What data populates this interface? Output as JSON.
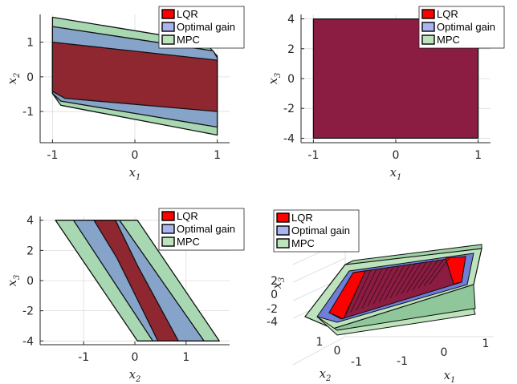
{
  "colors": {
    "lqr": "#ff0000",
    "optimal": "#aab4ee",
    "mpc": "#bde3bd",
    "lqr_fill_2d": "#8e2730",
    "lqr_fill_slab": "#8b1c42",
    "optimal_fill_2d": "#86a3c9",
    "mpc_fill_2d": "#a8d8b2",
    "edge": "#111111"
  },
  "chart_data": [
    {
      "type": "area",
      "panel": "top-left",
      "xlabel": "x1",
      "ylabel": "x2",
      "xlim": [
        -1.15,
        1.15
      ],
      "ylim": [
        -1.9,
        1.8
      ],
      "xticks": [
        "-1",
        "0",
        "1"
      ],
      "yticks": [
        "-1",
        "0",
        "1"
      ],
      "legend": {
        "position": "top-right",
        "entries": [
          "LQR",
          "Optimal gain",
          "MPC"
        ]
      },
      "series": [
        {
          "key": "mpc",
          "polygon": [
            [
              -1,
              1.72
            ],
            [
              0.85,
              1.0
            ],
            [
              1,
              0.6
            ],
            [
              1,
              -1.68
            ],
            [
              -0.9,
              -0.82
            ],
            [
              -1,
              -0.48
            ]
          ]
        },
        {
          "key": "optimal",
          "polygon": [
            [
              -1,
              1.45
            ],
            [
              0.95,
              0.75
            ],
            [
              1,
              0.55
            ],
            [
              1,
              -1.45
            ],
            [
              -0.9,
              -0.7
            ],
            [
              -1,
              -0.48
            ]
          ]
        },
        {
          "key": "lqr",
          "polygon": [
            [
              -1,
              1.0
            ],
            [
              1,
              0.48
            ],
            [
              1,
              -1.0
            ],
            [
              -0.85,
              -0.62
            ],
            [
              -1,
              -0.42
            ]
          ]
        }
      ]
    },
    {
      "type": "area",
      "panel": "top-right",
      "xlabel": "x1",
      "ylabel": "x3",
      "xlim": [
        -1.15,
        1.15
      ],
      "ylim": [
        -4.3,
        4.3
      ],
      "xticks": [
        "-1",
        "0",
        "1"
      ],
      "yticks": [
        "-4",
        "-2",
        "0",
        "2",
        "4"
      ],
      "legend": {
        "position": "top-right",
        "entries": [
          "LQR",
          "Optimal gain",
          "MPC"
        ]
      },
      "series": [
        {
          "key": "lqr",
          "polygon": [
            [
              -1,
              4
            ],
            [
              1,
              4
            ],
            [
              1,
              -4
            ],
            [
              -1,
              -4
            ]
          ]
        }
      ]
    },
    {
      "type": "area",
      "panel": "bottom-left",
      "xlabel": "x2",
      "ylabel": "x3",
      "xlim": [
        -1.85,
        1.85
      ],
      "ylim": [
        -4.25,
        4.25
      ],
      "xticks": [
        "-1",
        "0",
        "1"
      ],
      "yticks": [
        "-4",
        "-2",
        "0",
        "2",
        "4"
      ],
      "legend": {
        "position": "top-right",
        "entries": [
          "LQR",
          "Optimal gain",
          "MPC"
        ]
      },
      "series": [
        {
          "key": "mpc",
          "polygon": [
            [
              -1.55,
              4
            ],
            [
              0.05,
              4
            ],
            [
              1.65,
              -4
            ],
            [
              0.05,
              -4
            ]
          ]
        },
        {
          "key": "optimal",
          "polygon": [
            [
              -1.2,
              4
            ],
            [
              -0.3,
              4
            ],
            [
              1.35,
              -4
            ],
            [
              0.35,
              -4
            ]
          ]
        },
        {
          "key": "lqr",
          "polygon": [
            [
              -0.8,
              4
            ],
            [
              -0.38,
              4
            ],
            [
              0.05,
              1
            ],
            [
              0.85,
              -4
            ],
            [
              0.45,
              -4
            ],
            [
              -0.35,
              1.5
            ]
          ]
        }
      ]
    },
    {
      "type": "area",
      "panel": "bottom-right",
      "view": "3d",
      "xlabel": "x1",
      "ylabel": "x2",
      "zlabel": "x3",
      "x_ticks": [
        "-1",
        "0",
        "1"
      ],
      "y_ticks": [
        "1",
        "0",
        "-1"
      ],
      "z_ticks": [
        "2",
        "0",
        "-2",
        "-4"
      ],
      "legend": {
        "position": "top-left",
        "entries": [
          "LQR",
          "Optimal gain",
          "MPC"
        ]
      },
      "series": [
        {
          "key": "mpc",
          "shape": "slab"
        },
        {
          "key": "optimal",
          "shape": "slab"
        },
        {
          "key": "lqr",
          "shape": "slab"
        }
      ]
    }
  ]
}
